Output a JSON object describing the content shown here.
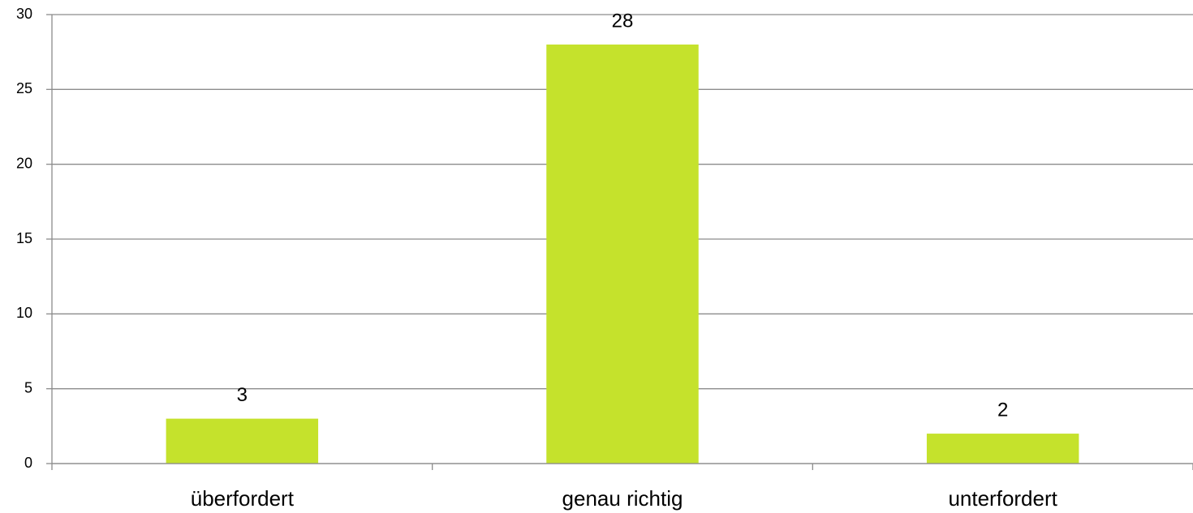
{
  "chart_data": {
    "type": "bar",
    "categories": [
      "überfordert",
      "genau richtig",
      "unterfordert"
    ],
    "values": [
      3,
      28,
      2
    ],
    "color": "#c5e22c",
    "ylim": [
      0,
      30
    ],
    "yticks": [
      0,
      5,
      10,
      15,
      20,
      25,
      30
    ],
    "grid": true,
    "data_labels": true
  }
}
